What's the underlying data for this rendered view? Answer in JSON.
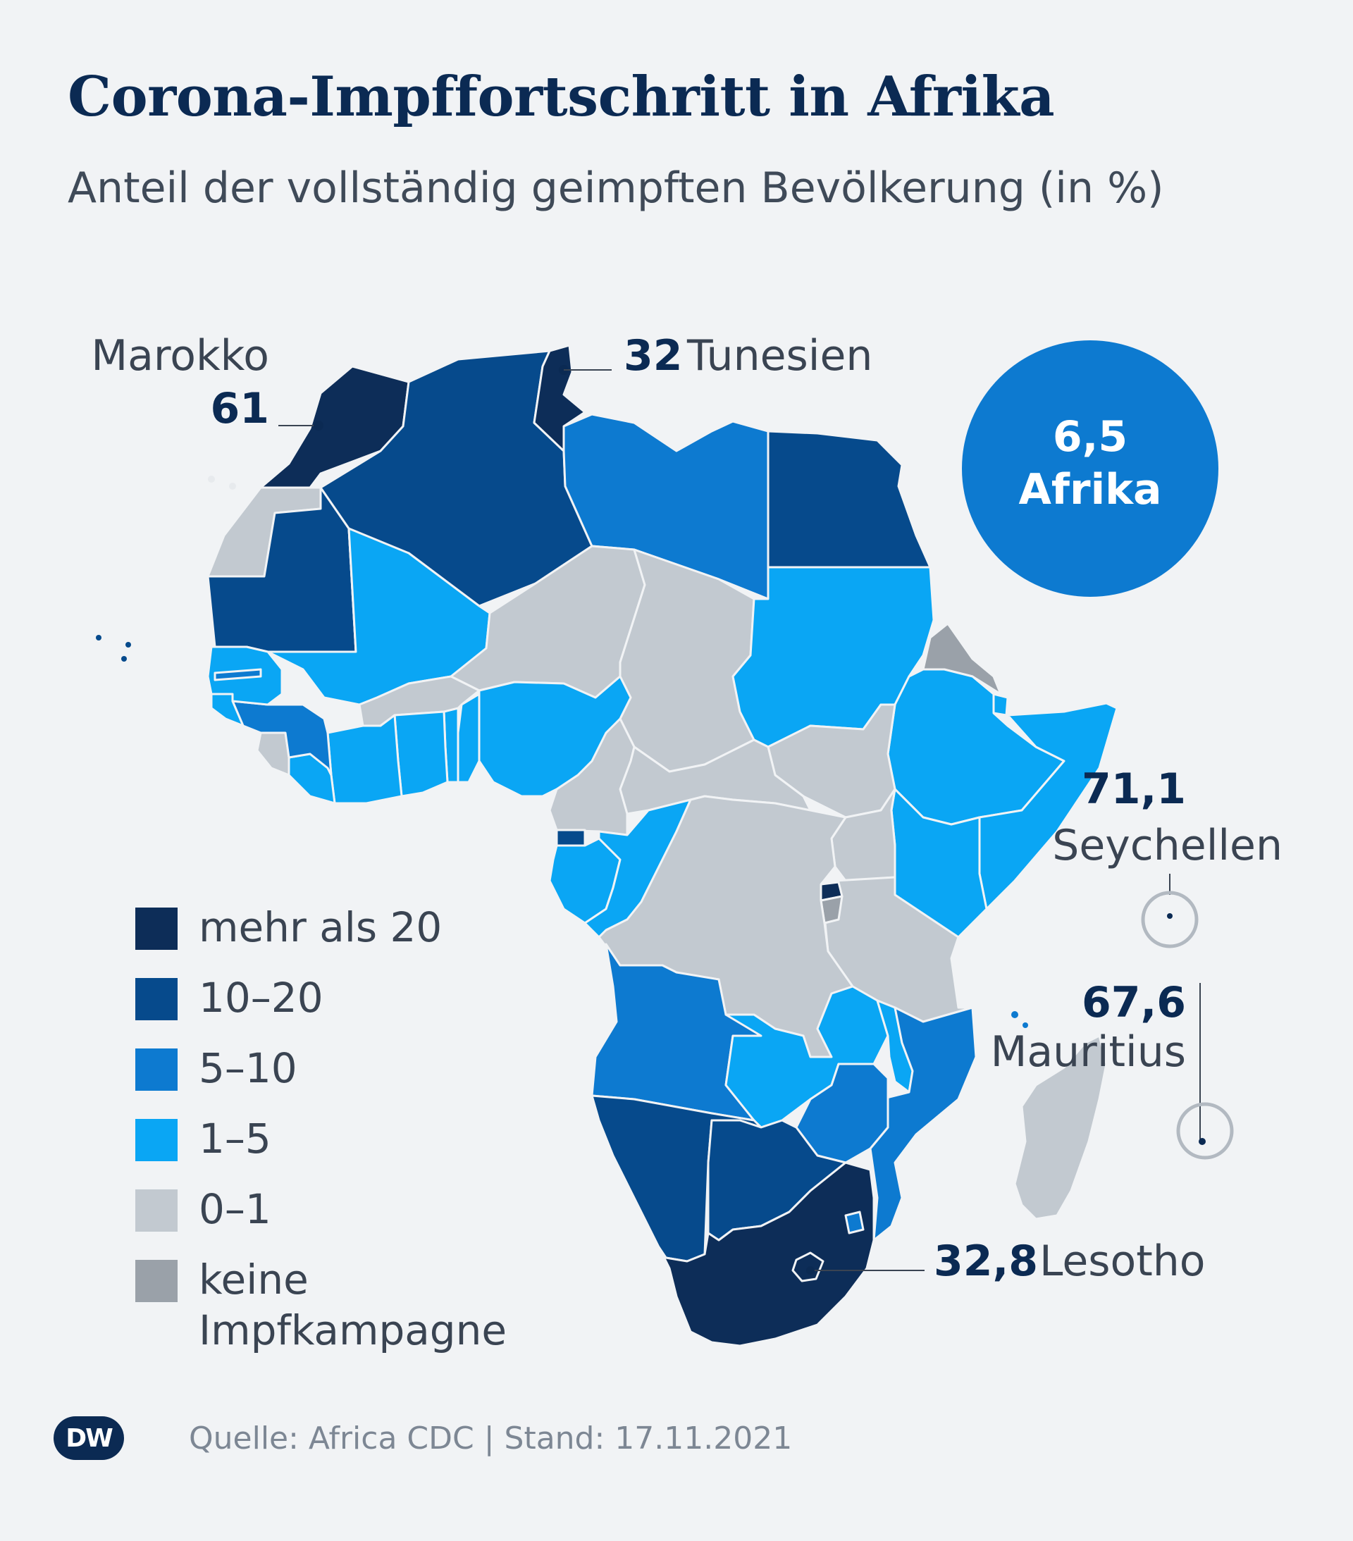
{
  "title": "Corona-Impffortschritt in Afrika",
  "subtitle": "Anteil der vollständig geimpften Bevölkerung (in %)",
  "colors": {
    "gt20": "#0d2d58",
    "c10_20": "#064a8c",
    "c5_10": "#0d7ad0",
    "c1_5": "#0aa6f4",
    "c0_1": "#c2c9d0",
    "none": "#9aa1a9",
    "background": "#f1f3f5"
  },
  "legend": [
    {
      "label": "mehr als 20",
      "color": "#0d2d58"
    },
    {
      "label": "10–20",
      "color": "#064a8c"
    },
    {
      "label": "5–10",
      "color": "#0d7ad0"
    },
    {
      "label": "1–5",
      "color": "#0aa6f4"
    },
    {
      "label": "0–1",
      "color": "#c2c9d0"
    },
    {
      "label": "keine\nImpfkampagne",
      "color": "#9aa1a9"
    }
  ],
  "africa_total": {
    "value": "6,5",
    "label": "Afrika"
  },
  "callouts": {
    "morocco": {
      "name": "Marokko",
      "value": "61"
    },
    "tunisia": {
      "value": "32",
      "name": "Tunesien"
    },
    "seychelles": {
      "value": "71,1",
      "name": "Seychellen"
    },
    "mauritius": {
      "value": "67,6",
      "name": "Mauritius"
    },
    "lesotho": {
      "value": "32,8",
      "name": "Lesotho"
    }
  },
  "footer": {
    "logo": "DW",
    "source": "Quelle: Africa CDC | Stand: 17.11.2021"
  }
}
